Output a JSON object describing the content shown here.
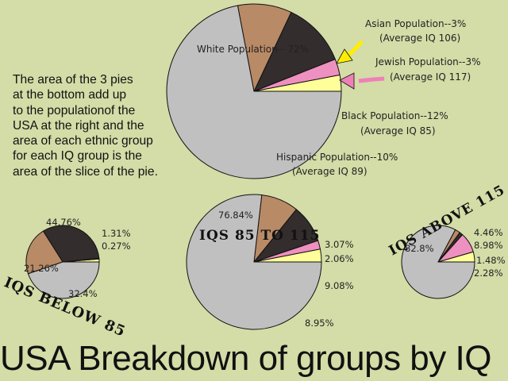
{
  "title": "USA Breakdown of groups by IQ",
  "note_lines": [
    "The area of the 3 pies",
    "at the bottom add up",
    "to the populationof the",
    "USA at the right and the",
    "area of each ethnic group",
    "for each IQ group is the",
    "area of the slice of the pie."
  ],
  "colors": {
    "background": "#d4dca7",
    "white_population": "#c0c0c0",
    "asian_population": "#ffff99",
    "jewish_population": "#ee90c0",
    "black_population": "#332d2d",
    "hispanic_population": "#b88a66",
    "arrow_asian": "#ffee00",
    "arrow_jewish": "#ee80b8"
  },
  "chart_data": [
    {
      "type": "pie",
      "title": "",
      "series": [
        {
          "name": "White Population-- 72%",
          "sub": "",
          "value": 72,
          "color": "#c0c0c0"
        },
        {
          "name": "Asian Population--3%",
          "sub": "(Average IQ 106)",
          "value": 3,
          "color": "#ffff99"
        },
        {
          "name": "Jewish Population--3%",
          "sub": "(Average IQ 117)",
          "value": 3,
          "color": "#ee90c0"
        },
        {
          "name": "Black Population--12%",
          "sub": "(Average IQ 85)",
          "value": 12,
          "color": "#332d2d"
        },
        {
          "name": "Hispanic Population--10%",
          "sub": "(Average IQ 89)",
          "value": 10,
          "color": "#b88a66"
        }
      ]
    },
    {
      "type": "pie",
      "title": "IQS BELOW 85",
      "series": [
        {
          "name": "44.76%",
          "value": 44.76,
          "color": "#c0c0c0"
        },
        {
          "name": "1.31%",
          "value": 1.31,
          "color": "#ffff99"
        },
        {
          "name": "0.27%",
          "value": 0.27,
          "color": "#ee90c0"
        },
        {
          "name": "32.4%",
          "value": 32.4,
          "color": "#332d2d"
        },
        {
          "name": "21.26%",
          "value": 21.26,
          "color": "#b88a66"
        }
      ]
    },
    {
      "type": "pie",
      "title": "IQS 85 TO 115",
      "series": [
        {
          "name": "76.84%",
          "value": 76.84,
          "color": "#c0c0c0"
        },
        {
          "name": "3.07%",
          "value": 3.07,
          "color": "#ffff99"
        },
        {
          "name": "2.06%",
          "value": 2.06,
          "color": "#ee90c0"
        },
        {
          "name": "9.08%",
          "value": 9.08,
          "color": "#332d2d"
        },
        {
          "name": "8.95%",
          "value": 8.95,
          "color": "#b88a66"
        }
      ]
    },
    {
      "type": "pie",
      "title": "IQS ABOVE 115",
      "series": [
        {
          "name": "82.8%",
          "value": 82.8,
          "color": "#c0c0c0"
        },
        {
          "name": "4.46%",
          "value": 4.46,
          "color": "#ffff99"
        },
        {
          "name": "8.98%",
          "value": 8.98,
          "color": "#ee90c0"
        },
        {
          "name": "1.48%",
          "value": 1.48,
          "color": "#332d2d"
        },
        {
          "name": "2.28%",
          "value": 2.28,
          "color": "#b88a66"
        }
      ]
    }
  ]
}
